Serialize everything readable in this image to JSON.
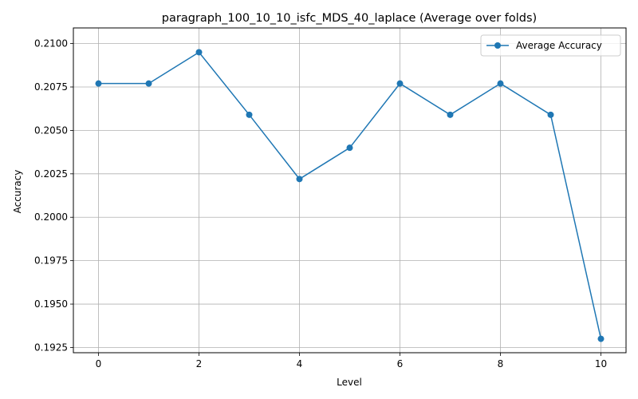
{
  "chart_data": {
    "type": "line",
    "title": "paragraph_100_10_10_isfc_MDS_40_laplace (Average over folds)",
    "xlabel": "Level",
    "ylabel": "Accuracy",
    "xlim": [
      -0.5,
      10.5
    ],
    "ylim": [
      0.1922,
      0.2109
    ],
    "xticks": [
      0,
      2,
      4,
      6,
      8,
      10
    ],
    "yticks": [
      0.1925,
      0.195,
      0.1975,
      0.2,
      0.2025,
      0.205,
      0.2075,
      0.21
    ],
    "ytick_labels": [
      "0.1925",
      "0.1950",
      "0.1975",
      "0.2000",
      "0.2025",
      "0.2050",
      "0.2075",
      "0.2100"
    ],
    "grid": true,
    "legend_position": "top-right",
    "series": [
      {
        "name": "Average Accuracy",
        "color": "#1f77b4",
        "marker": "circle",
        "x": [
          0,
          1,
          2,
          3,
          4,
          5,
          6,
          7,
          8,
          9,
          10
        ],
        "y": [
          0.2077,
          0.2077,
          0.2095,
          0.2059,
          0.2022,
          0.204,
          0.2077,
          0.2059,
          0.2077,
          0.2059,
          0.193
        ]
      }
    ]
  }
}
